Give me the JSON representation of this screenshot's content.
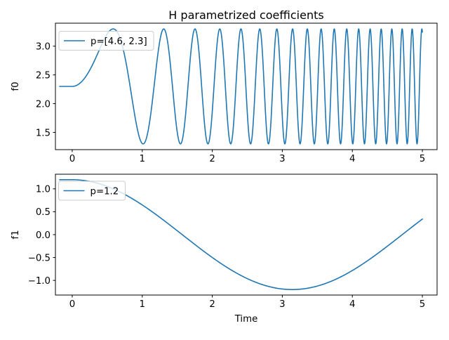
{
  "figure": {
    "title": "H parametrized coefficients",
    "xlabel": "Time",
    "line_color": "#1f77b4",
    "background": "#ffffff",
    "legend_edge_color": "#cccccc"
  },
  "chart_data": [
    {
      "type": "line",
      "ylabel": "f0",
      "legend": {
        "label": "p=[4.6, 2.3]",
        "position": "upper left"
      },
      "xlim": [
        -0.24,
        5.21
      ],
      "ylim": [
        1.2,
        3.4
      ],
      "x_ticks": [
        0,
        1,
        2,
        3,
        4,
        5
      ],
      "x_tick_labels": [
        "0",
        "1",
        "2",
        "3",
        "4",
        "5"
      ],
      "y_ticks": [
        1.5,
        2.0,
        2.5,
        3.0
      ],
      "y_tick_labels": [
        "1.5",
        "2.0",
        "2.5",
        "3.0"
      ],
      "series": [
        {
          "name": "p=[4.6, 2.3]",
          "formula": "f0(t) = 2.3 + sin(4.6 * t^2)",
          "fn": "chirp_sin",
          "params": {
            "rate": 4.6,
            "center": 2.3,
            "amplitude": 1.0
          },
          "t_start": -0.18,
          "t_end": 5,
          "n_samples": 2400,
          "color": "#1f77b4",
          "y_start": 2.3,
          "y_end": 3.25,
          "y_min": 1.3,
          "y_max": 3.3
        }
      ]
    },
    {
      "type": "line",
      "ylabel": "f1",
      "xlabel": "Time",
      "legend": {
        "label": "p=1.2",
        "position": "upper left"
      },
      "xlim": [
        -0.24,
        5.21
      ],
      "ylim": [
        -1.32,
        1.32
      ],
      "x_ticks": [
        0,
        1,
        2,
        3,
        4,
        5
      ],
      "x_tick_labels": [
        "0",
        "1",
        "2",
        "3",
        "4",
        "5"
      ],
      "y_ticks": [
        1.0,
        0.5,
        0.0,
        -0.5,
        -1.0
      ],
      "y_tick_labels": [
        "1.0",
        "0.5",
        "0.0",
        "−0.5",
        "−1.0"
      ],
      "series": [
        {
          "name": "p=1.2",
          "formula": "f1(t) = 1.2 * cos(t)",
          "fn": "cos",
          "params": {
            "amplitude": 1.2
          },
          "t_start": -0.18,
          "t_end": 5,
          "n_samples": 400,
          "color": "#1f77b4",
          "y_start": 1.2,
          "y_end": 0.34,
          "y_min": -1.2,
          "y_max": 1.2
        }
      ]
    }
  ]
}
